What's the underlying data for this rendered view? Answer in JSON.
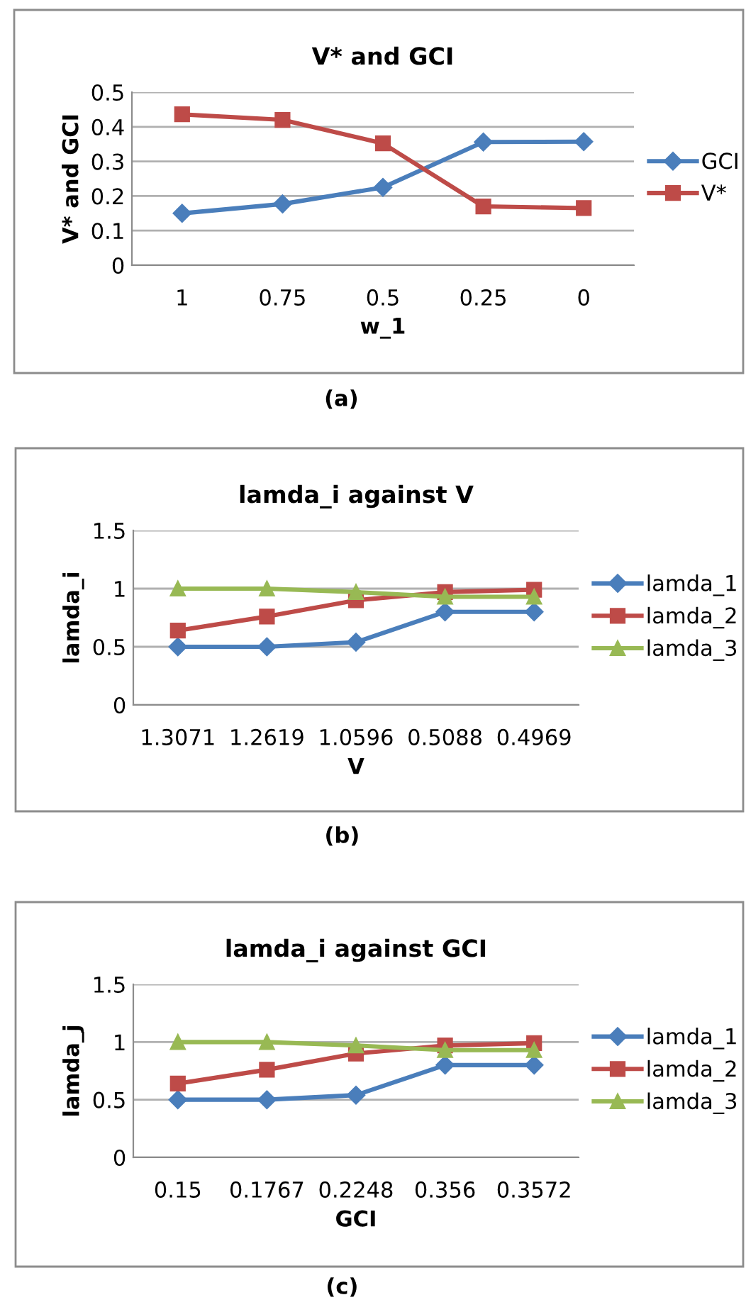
{
  "chart_data": [
    {
      "type": "line",
      "title": "V* and GCI",
      "xlabel": "w_1",
      "ylabel": "V* and GCI",
      "categories": [
        "1",
        "0.75",
        "0.5",
        "0.25",
        "0"
      ],
      "series": [
        {
          "name": "GCI",
          "color": "#4a7ebb",
          "marker": "diamond",
          "values": [
            0.15,
            0.177,
            0.225,
            0.356,
            0.357
          ]
        },
        {
          "name": "V*",
          "color": "#be4b48",
          "marker": "square",
          "values": [
            0.436,
            0.42,
            0.352,
            0.17,
            0.165
          ]
        }
      ],
      "ylim": [
        0,
        0.5
      ],
      "yticks": [
        0,
        0.1,
        0.2,
        0.3,
        0.4,
        0.5
      ],
      "grid": "y",
      "legend": "right",
      "annotations": [
        "(a)"
      ]
    },
    {
      "type": "line",
      "title": "lamda_i against V",
      "xlabel": "V",
      "ylabel": "lamda_i",
      "categories": [
        "1.3071",
        "1.2619",
        "1.0596",
        "0.5088",
        "0.4969"
      ],
      "series": [
        {
          "name": "lamda_1",
          "color": "#4a7ebb",
          "marker": "diamond",
          "values": [
            0.5,
            0.5,
            0.54,
            0.8,
            0.8
          ]
        },
        {
          "name": "lamda_2",
          "color": "#be4b48",
          "marker": "square",
          "values": [
            0.64,
            0.76,
            0.9,
            0.97,
            0.99
          ]
        },
        {
          "name": "lamda_3",
          "color": "#98b954",
          "marker": "triangle",
          "values": [
            1.0,
            1.0,
            0.97,
            0.93,
            0.93
          ]
        }
      ],
      "ylim": [
        0,
        1.5
      ],
      "yticks": [
        0,
        0.5,
        1,
        1.5
      ],
      "grid": "y",
      "legend": "right",
      "annotations": [
        "(b)"
      ]
    },
    {
      "type": "line",
      "title": "lamda_i against GCI",
      "xlabel": "GCI",
      "ylabel": "lamda_j",
      "categories": [
        "0.15",
        "0.1767",
        "0.2248",
        "0.356",
        "0.3572"
      ],
      "series": [
        {
          "name": "lamda_1",
          "color": "#4a7ebb",
          "marker": "diamond",
          "values": [
            0.5,
            0.5,
            0.54,
            0.8,
            0.8
          ]
        },
        {
          "name": "lamda_2",
          "color": "#be4b48",
          "marker": "square",
          "values": [
            0.64,
            0.76,
            0.9,
            0.97,
            0.99
          ]
        },
        {
          "name": "lamda_3",
          "color": "#98b954",
          "marker": "triangle",
          "values": [
            1.0,
            1.0,
            0.97,
            0.93,
            0.93
          ]
        }
      ],
      "ylim": [
        0,
        1.5
      ],
      "yticks": [
        0,
        0.5,
        1,
        1.5
      ],
      "grid": "y",
      "legend": "right",
      "annotations": [
        "(c)"
      ]
    }
  ]
}
